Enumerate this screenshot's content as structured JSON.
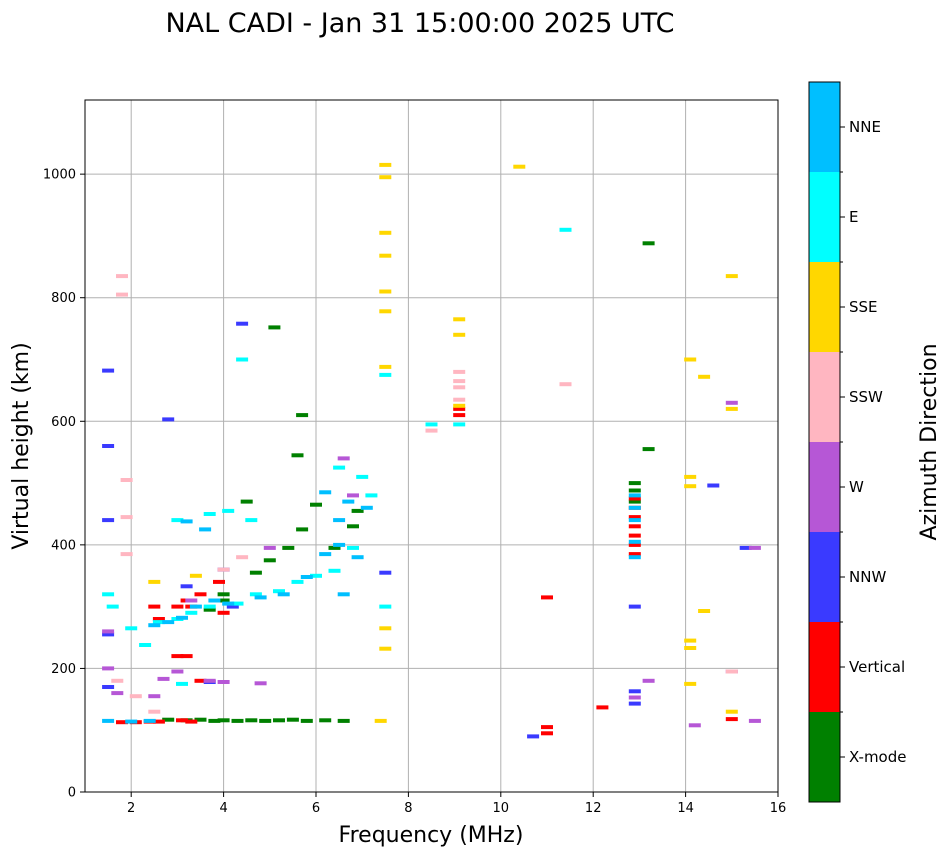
{
  "chart_data": {
    "type": "scatter",
    "title": "NAL CADI - Jan 31 15:00:00 2025 UTC",
    "xlabel": "Frequency (MHz)",
    "ylabel": "Virtual height (km)",
    "xlim": [
      1,
      16
    ],
    "ylim": [
      0,
      1120
    ],
    "xticks": [
      2,
      4,
      6,
      8,
      10,
      12,
      14,
      16
    ],
    "yticks": [
      0,
      200,
      400,
      600,
      800,
      1000
    ],
    "grid": true,
    "colorbar": {
      "label": "Azimuth Direction",
      "categories": [
        {
          "name": "X-mode",
          "color": "#008000"
        },
        {
          "name": "Vertical",
          "color": "#ff0000"
        },
        {
          "name": "NNW",
          "color": "#3a3aff"
        },
        {
          "name": "W",
          "color": "#b657d6"
        },
        {
          "name": "SSW",
          "color": "#ffb6c1"
        },
        {
          "name": "SSE",
          "color": "#ffd700"
        },
        {
          "name": "E",
          "color": "#00ffff"
        },
        {
          "name": "NNE",
          "color": "#00bfff"
        }
      ]
    },
    "series": [
      {
        "name": "X-mode",
        "points": [
          [
            2.8,
            117
          ],
          [
            3.2,
            116
          ],
          [
            3.5,
            117
          ],
          [
            3.8,
            115
          ],
          [
            4.0,
            116
          ],
          [
            4.3,
            115
          ],
          [
            4.6,
            116
          ],
          [
            4.9,
            115
          ],
          [
            5.2,
            116
          ],
          [
            5.5,
            117
          ],
          [
            5.8,
            115
          ],
          [
            6.2,
            116
          ],
          [
            6.6,
            115
          ],
          [
            4.0,
            310
          ],
          [
            4.0,
            320
          ],
          [
            3.7,
            295
          ],
          [
            4.7,
            355
          ],
          [
            5.0,
            375
          ],
          [
            5.4,
            395
          ],
          [
            5.7,
            425
          ],
          [
            6.0,
            465
          ],
          [
            6.4,
            395
          ],
          [
            6.8,
            430
          ],
          [
            6.9,
            455
          ],
          [
            5.7,
            610
          ],
          [
            5.6,
            545
          ],
          [
            5.1,
            752
          ],
          [
            4.5,
            470
          ],
          [
            13.2,
            888
          ],
          [
            13.2,
            555
          ],
          [
            12.9,
            488
          ],
          [
            12.9,
            470
          ],
          [
            12.9,
            500
          ]
        ]
      },
      {
        "name": "Vertical",
        "points": [
          [
            1.8,
            113
          ],
          [
            2.1,
            113
          ],
          [
            2.4,
            114
          ],
          [
            2.6,
            114
          ],
          [
            3.1,
            116
          ],
          [
            3.3,
            114
          ],
          [
            2.5,
            300
          ],
          [
            2.6,
            280
          ],
          [
            3.0,
            300
          ],
          [
            3.2,
            310
          ],
          [
            3.5,
            320
          ],
          [
            3.3,
            300
          ],
          [
            3.0,
            220
          ],
          [
            3.2,
            220
          ],
          [
            3.5,
            180
          ],
          [
            11.0,
            95
          ],
          [
            11.0,
            105
          ],
          [
            11.0,
            315
          ],
          [
            12.2,
            137
          ],
          [
            12.9,
            385
          ],
          [
            12.9,
            400
          ],
          [
            12.9,
            415
          ],
          [
            12.9,
            430
          ],
          [
            12.9,
            445
          ],
          [
            12.9,
            460
          ],
          [
            12.9,
            475
          ],
          [
            15.0,
            118
          ],
          [
            4.0,
            290
          ],
          [
            3.9,
            340
          ],
          [
            9.1,
            610
          ],
          [
            9.1,
            620
          ]
        ]
      },
      {
        "name": "NNW",
        "points": [
          [
            1.5,
            682
          ],
          [
            1.5,
            560
          ],
          [
            1.5,
            440
          ],
          [
            1.5,
            170
          ],
          [
            1.5,
            255
          ],
          [
            10.7,
            90
          ],
          [
            12.9,
            300
          ],
          [
            12.9,
            163
          ],
          [
            12.9,
            143
          ],
          [
            14.6,
            496
          ],
          [
            15.3,
            395
          ],
          [
            4.4,
            758
          ],
          [
            4.0,
            360
          ],
          [
            3.2,
            333
          ],
          [
            3.7,
            178
          ],
          [
            2.8,
            603
          ],
          [
            4.2,
            300
          ],
          [
            7.5,
            355
          ]
        ]
      },
      {
        "name": "W",
        "points": [
          [
            1.5,
            200
          ],
          [
            1.5,
            260
          ],
          [
            1.7,
            160
          ],
          [
            2.5,
            155
          ],
          [
            2.7,
            183
          ],
          [
            3.0,
            195
          ],
          [
            3.3,
            310
          ],
          [
            3.7,
            180
          ],
          [
            4.0,
            178
          ],
          [
            4.8,
            176
          ],
          [
            6.6,
            540
          ],
          [
            14.2,
            108
          ],
          [
            15.0,
            630
          ],
          [
            15.0,
            195
          ],
          [
            15.5,
            115
          ],
          [
            15.5,
            395
          ],
          [
            13.2,
            180
          ],
          [
            12.9,
            153
          ],
          [
            5.0,
            395
          ],
          [
            6.8,
            480
          ]
        ]
      },
      {
        "name": "SSW",
        "points": [
          [
            1.8,
            835
          ],
          [
            1.8,
            805
          ],
          [
            1.9,
            505
          ],
          [
            1.9,
            445
          ],
          [
            1.9,
            385
          ],
          [
            1.7,
            180
          ],
          [
            2.1,
            155
          ],
          [
            2.5,
            130
          ],
          [
            8.5,
            585
          ],
          [
            9.1,
            635
          ],
          [
            9.1,
            665
          ],
          [
            9.1,
            680
          ],
          [
            9.1,
            655
          ],
          [
            11.4,
            660
          ],
          [
            15.0,
            195
          ],
          [
            4.4,
            380
          ],
          [
            4.0,
            360
          ]
        ]
      },
      {
        "name": "SSE",
        "points": [
          [
            7.5,
            1015
          ],
          [
            7.5,
            995
          ],
          [
            7.5,
            905
          ],
          [
            7.5,
            868
          ],
          [
            7.5,
            810
          ],
          [
            7.5,
            778
          ],
          [
            7.5,
            688
          ],
          [
            7.5,
            265
          ],
          [
            7.5,
            232
          ],
          [
            7.4,
            115
          ],
          [
            9.1,
            765
          ],
          [
            9.1,
            740
          ],
          [
            9.1,
            625
          ],
          [
            10.4,
            1012
          ],
          [
            14.1,
            700
          ],
          [
            14.4,
            672
          ],
          [
            14.1,
            510
          ],
          [
            14.1,
            495
          ],
          [
            14.1,
            245
          ],
          [
            14.1,
            233
          ],
          [
            14.4,
            293
          ],
          [
            14.1,
            175
          ],
          [
            15.0,
            130
          ],
          [
            15.0,
            835
          ],
          [
            15.0,
            620
          ],
          [
            2.5,
            340
          ],
          [
            3.4,
            350
          ]
        ]
      },
      {
        "name": "E",
        "points": [
          [
            1.5,
            320
          ],
          [
            1.6,
            300
          ],
          [
            2.0,
            265
          ],
          [
            2.3,
            238
          ],
          [
            2.6,
            275
          ],
          [
            3.0,
            280
          ],
          [
            3.3,
            290
          ],
          [
            3.7,
            300
          ],
          [
            4.3,
            305
          ],
          [
            4.7,
            320
          ],
          [
            5.2,
            325
          ],
          [
            5.6,
            340
          ],
          [
            6.0,
            350
          ],
          [
            6.4,
            358
          ],
          [
            6.8,
            395
          ],
          [
            7.2,
            480
          ],
          [
            7.0,
            510
          ],
          [
            6.5,
            525
          ],
          [
            4.4,
            700
          ],
          [
            7.5,
            300
          ],
          [
            7.5,
            675
          ],
          [
            8.5,
            595
          ],
          [
            9.1,
            595
          ],
          [
            11.4,
            910
          ],
          [
            3.0,
            440
          ],
          [
            3.7,
            450
          ],
          [
            4.1,
            455
          ],
          [
            4.6,
            440
          ],
          [
            3.1,
            175
          ]
        ]
      },
      {
        "name": "NNE",
        "points": [
          [
            1.5,
            115
          ],
          [
            2.0,
            114
          ],
          [
            2.4,
            115
          ],
          [
            2.5,
            270
          ],
          [
            2.8,
            275
          ],
          [
            3.1,
            282
          ],
          [
            3.4,
            300
          ],
          [
            3.8,
            310
          ],
          [
            4.1,
            305
          ],
          [
            3.6,
            425
          ],
          [
            3.2,
            438
          ],
          [
            4.8,
            315
          ],
          [
            5.3,
            320
          ],
          [
            5.8,
            348
          ],
          [
            6.2,
            385
          ],
          [
            6.5,
            400
          ],
          [
            6.5,
            440
          ],
          [
            6.9,
            380
          ],
          [
            7.1,
            460
          ],
          [
            6.2,
            485
          ],
          [
            6.7,
            470
          ],
          [
            6.6,
            320
          ],
          [
            12.9,
            380
          ],
          [
            12.9,
            405
          ],
          [
            12.9,
            440
          ],
          [
            12.9,
            460
          ],
          [
            12.9,
            480
          ]
        ]
      }
    ]
  }
}
